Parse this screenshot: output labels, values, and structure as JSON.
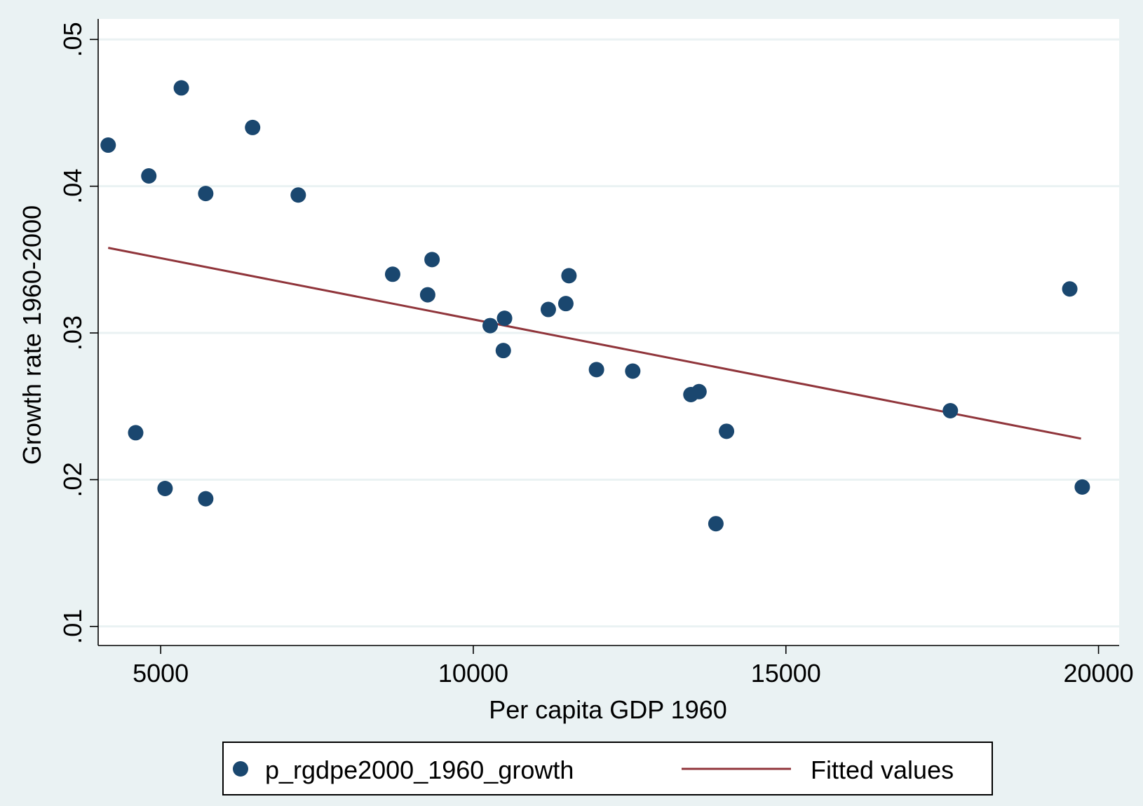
{
  "chart_data": {
    "type": "scatter",
    "xlabel": "Per capita GDP 1960",
    "ylabel": "Growth rate 1960-2000",
    "xlim": [
      4000,
      20330
    ],
    "ylim": [
      0.0087,
      0.0514
    ],
    "x_ticks": [
      {
        "value": 5000,
        "label": "5000"
      },
      {
        "value": 10000,
        "label": "10000"
      },
      {
        "value": 15000,
        "label": "15000"
      },
      {
        "value": 20000,
        "label": "20000"
      }
    ],
    "y_ticks": [
      {
        "value": 0.01,
        "label": ".01"
      },
      {
        "value": 0.02,
        "label": ".02"
      },
      {
        "value": 0.03,
        "label": ".03"
      },
      {
        "value": 0.04,
        "label": ".04"
      },
      {
        "value": 0.05,
        "label": ".05"
      }
    ],
    "grid": "horizontal",
    "legend_position": "bottom",
    "series": [
      {
        "name": "p_rgdpe2000_1960_growth",
        "kind": "scatter",
        "color": "#1a476f",
        "points": [
          [
            4160,
            0.0428
          ],
          [
            4600,
            0.0232
          ],
          [
            4810,
            0.0407
          ],
          [
            5070,
            0.0194
          ],
          [
            5330,
            0.0467
          ],
          [
            5720,
            0.0395
          ],
          [
            5720,
            0.0187
          ],
          [
            6470,
            0.044
          ],
          [
            7200,
            0.0394
          ],
          [
            8710,
            0.034
          ],
          [
            9270,
            0.0326
          ],
          [
            9340,
            0.035
          ],
          [
            10270,
            0.0305
          ],
          [
            10480,
            0.0288
          ],
          [
            10500,
            0.031
          ],
          [
            11200,
            0.0316
          ],
          [
            11480,
            0.032
          ],
          [
            11530,
            0.0339
          ],
          [
            11970,
            0.0275
          ],
          [
            12550,
            0.0274
          ],
          [
            13480,
            0.0258
          ],
          [
            13610,
            0.026
          ],
          [
            13880,
            0.017
          ],
          [
            14050,
            0.0233
          ],
          [
            17630,
            0.0247
          ],
          [
            19540,
            0.033
          ],
          [
            19740,
            0.0195
          ]
        ]
      },
      {
        "name": "Fitted values",
        "kind": "line",
        "color": "#90353b",
        "points": [
          [
            4160,
            0.0358
          ],
          [
            19720,
            0.0228
          ]
        ]
      }
    ]
  }
}
